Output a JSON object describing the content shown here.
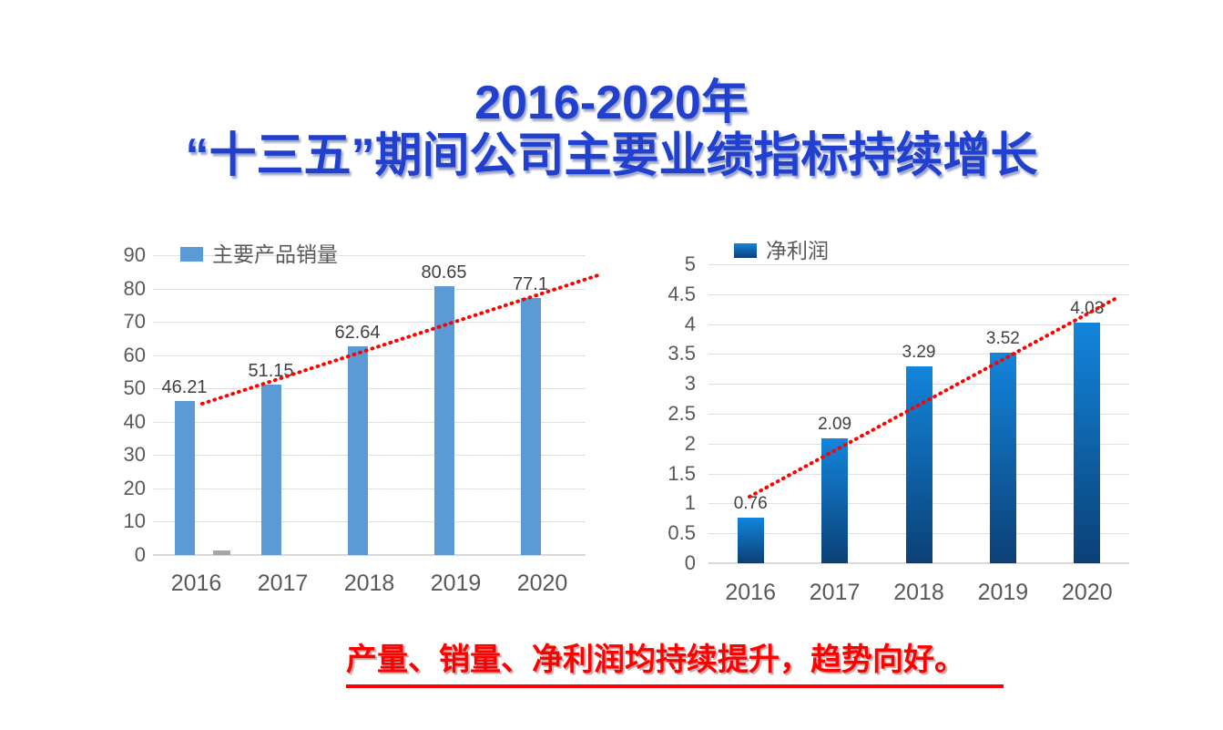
{
  "title": {
    "line1": "2016-2020年",
    "line2": "“十三五”期间公司主要业绩指标持续增长"
  },
  "footer": {
    "text": "产量、销量、净利润均持续提升，趋势向好。"
  },
  "colors": {
    "title_blue": "#2140CE",
    "footer_red": "#FF0000",
    "sales_bar": "#5B9AD5",
    "secondary_bar_gray": "#A6A6A6",
    "profit_bar_top": "#1285DC",
    "profit_bar_bottom": "#0B4076",
    "trendline_red": "#FF0000",
    "grid": "#E0E0E0",
    "axis": "#D9D9D9",
    "tick_text": "#595959",
    "value_label_text": "#404040"
  },
  "chart_data": [
    {
      "type": "bar",
      "name": "sales",
      "legend": "主要产品销量",
      "legend_position": "top-left",
      "categories": [
        "2016",
        "2017",
        "2018",
        "2019",
        "2020"
      ],
      "values": [
        46.21,
        51.15,
        62.64,
        80.65,
        77.1
      ],
      "value_labels": [
        "46.21",
        "51.15",
        "62.64",
        "80.65",
        "77.1"
      ],
      "secondary_series": {
        "name": "unlabeled-gray-series",
        "values": [
          1.3,
          null,
          null,
          null,
          null
        ]
      },
      "ylim": [
        0,
        90
      ],
      "ytick_step": 10,
      "yticks": [
        0,
        10,
        20,
        30,
        40,
        50,
        60,
        70,
        80,
        90
      ],
      "grid": true,
      "trendline": "linear-dotted-red"
    },
    {
      "type": "bar",
      "name": "net-profit",
      "legend": "净利润",
      "legend_position": "top-left",
      "categories": [
        "2016",
        "2017",
        "2018",
        "2019",
        "2020"
      ],
      "values": [
        0.76,
        2.09,
        3.29,
        3.52,
        4.03
      ],
      "value_labels": [
        "0.76",
        "2.09",
        "3.29",
        "3.52",
        "4.03"
      ],
      "ylim": [
        0,
        5
      ],
      "ytick_step": 0.5,
      "yticks": [
        0,
        0.5,
        1,
        1.5,
        2,
        2.5,
        3,
        3.5,
        4,
        4.5,
        5
      ],
      "grid": true,
      "trendline": "linear-dotted-red"
    }
  ]
}
